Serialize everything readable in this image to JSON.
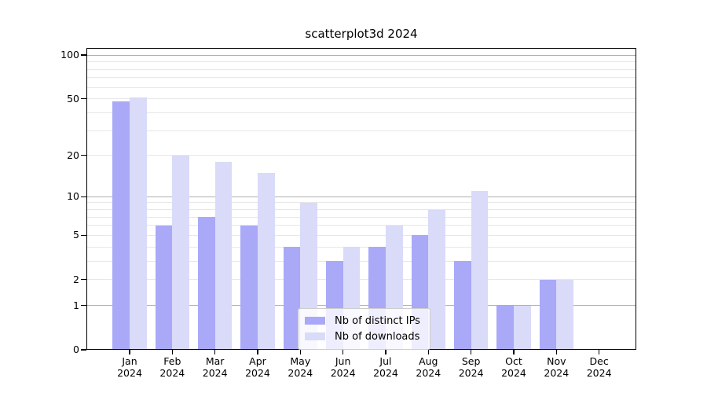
{
  "chart_data": {
    "type": "bar",
    "title": "scatterplot3d 2024",
    "categories": [
      {
        "month": "Jan",
        "year": "2024"
      },
      {
        "month": "Feb",
        "year": "2024"
      },
      {
        "month": "Mar",
        "year": "2024"
      },
      {
        "month": "Apr",
        "year": "2024"
      },
      {
        "month": "May",
        "year": "2024"
      },
      {
        "month": "Jun",
        "year": "2024"
      },
      {
        "month": "Jul",
        "year": "2024"
      },
      {
        "month": "Aug",
        "year": "2024"
      },
      {
        "month": "Sep",
        "year": "2024"
      },
      {
        "month": "Oct",
        "year": "2024"
      },
      {
        "month": "Nov",
        "year": "2024"
      },
      {
        "month": "Dec",
        "year": "2024"
      }
    ],
    "series": [
      {
        "name": "Nb of distinct IPs",
        "color": "#a9a9f8",
        "values": [
          48,
          6,
          7,
          6,
          4,
          3,
          4,
          5,
          3,
          1,
          2,
          0
        ]
      },
      {
        "name": "Nb of downloads",
        "color": "#dadaf9",
        "values": [
          51,
          20,
          18,
          15,
          9,
          4,
          6,
          8,
          11,
          1,
          2,
          0
        ]
      }
    ],
    "yticks": [
      0,
      1,
      2,
      5,
      10,
      20,
      50,
      100
    ],
    "ylim": [
      0,
      112
    ],
    "yscale": "log1p",
    "xlabel": "",
    "ylabel": "",
    "grid": true,
    "legend_position": "lower-center"
  }
}
